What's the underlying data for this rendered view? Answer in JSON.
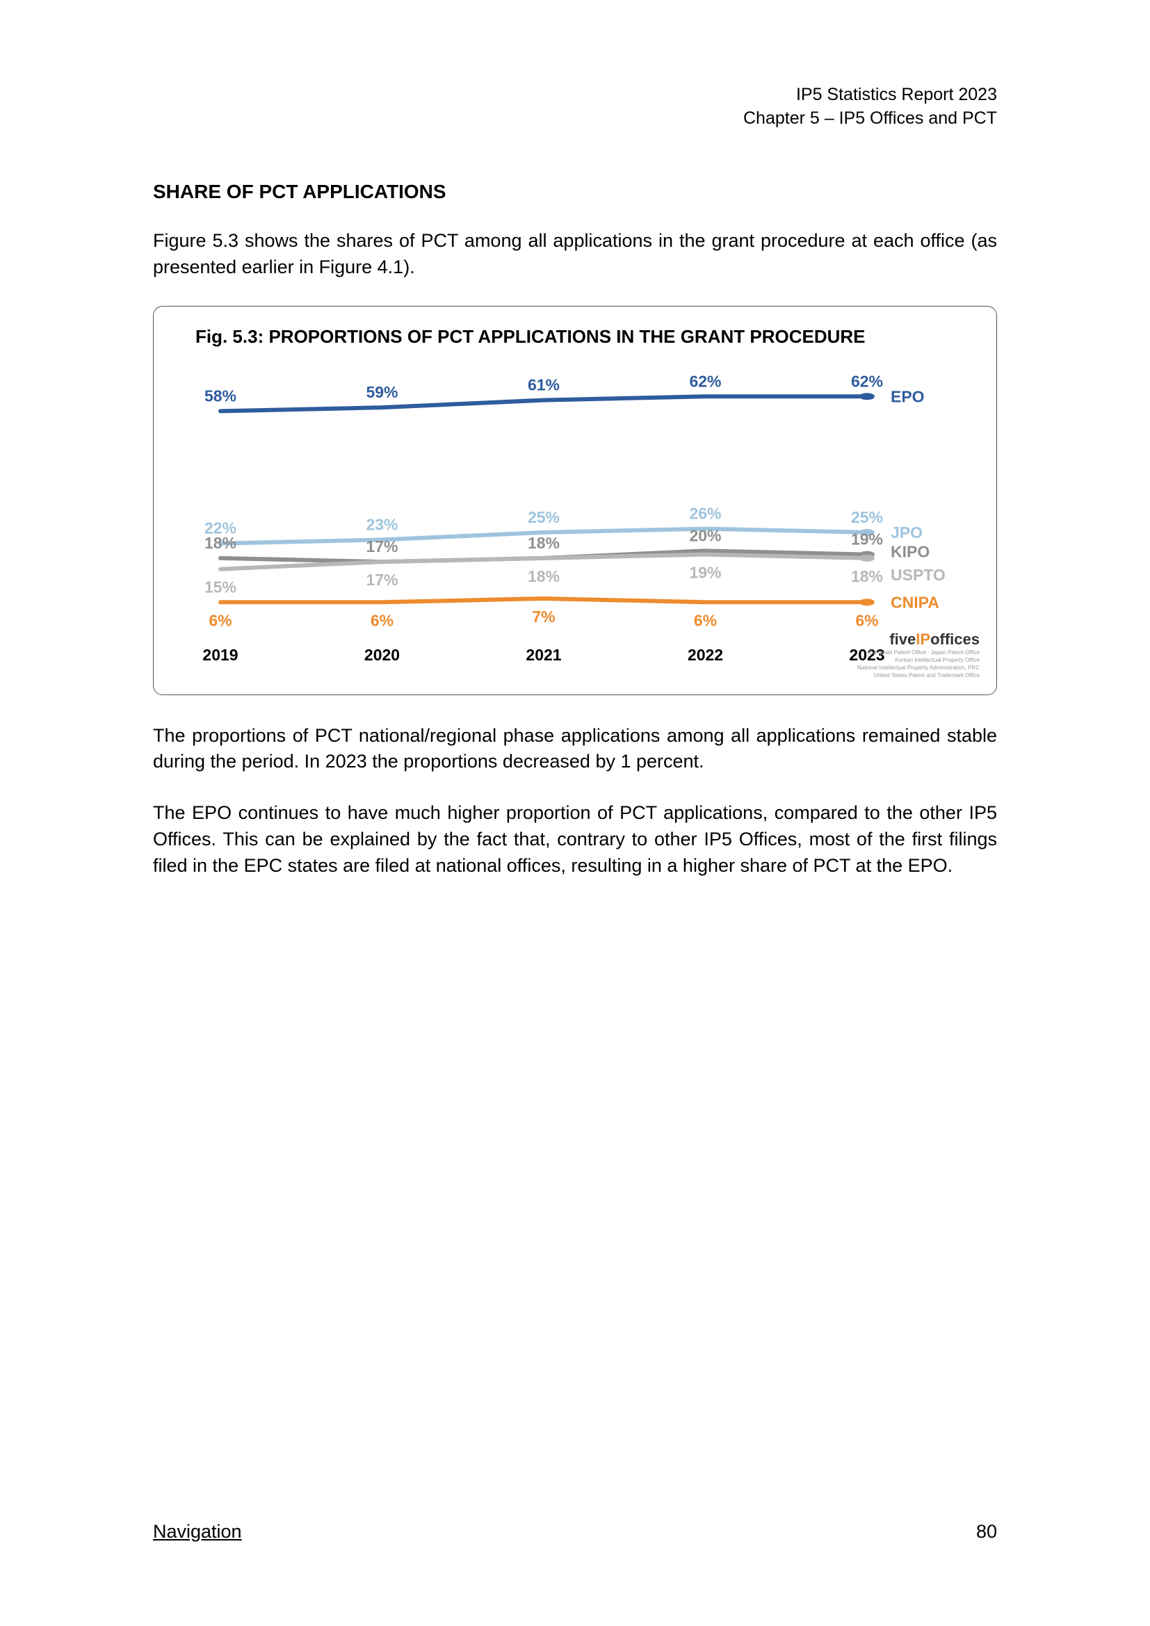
{
  "header": {
    "line1": "IP5 Statistics Report 2023",
    "line2": "Chapter 5 – IP5 Offices and PCT"
  },
  "section_title": "SHARE OF PCT APPLICATIONS",
  "intro_text": "Figure 5.3 shows the shares of PCT among all applications in the grant procedure at each office (as presented earlier in Figure 4.1).",
  "chart": {
    "title": "Fig. 5.3: PROPORTIONS OF PCT APPLICATIONS IN THE GRANT PROCEDURE",
    "x_categories": [
      "2019",
      "2020",
      "2021",
      "2022",
      "2023"
    ],
    "ylim": [
      0,
      70
    ],
    "line_width": 6,
    "marker_radius": 5,
    "background_color": "#ffffff",
    "series": [
      {
        "name": "EPO",
        "color": "#2e5c9e",
        "values": [
          58,
          59,
          61,
          62,
          62
        ],
        "labels": [
          "58%",
          "59%",
          "61%",
          "62%",
          "62%"
        ],
        "label_pos": "above"
      },
      {
        "name": "JPO",
        "color": "#9fc4de",
        "values": [
          22,
          23,
          25,
          26,
          25
        ],
        "labels": [
          "22%",
          "23%",
          "25%",
          "26%",
          "25%"
        ],
        "label_pos": "above"
      },
      {
        "name": "KIPO",
        "color": "#8f8f8f",
        "values": [
          18,
          17,
          18,
          20,
          19
        ],
        "labels": [
          "18%",
          "17%",
          "18%",
          "20%",
          "19%"
        ],
        "label_pos": "above"
      },
      {
        "name": "USPTO",
        "color": "#b7b7b7",
        "values": [
          15,
          17,
          18,
          19,
          18
        ],
        "labels": [
          "15%",
          "17%",
          "18%",
          "19%",
          "18%"
        ],
        "label_pos": "below"
      },
      {
        "name": "CNIPA",
        "color": "#ed8b2e",
        "values": [
          6,
          6,
          7,
          6,
          6
        ],
        "labels": [
          "6%",
          "6%",
          "7%",
          "6%",
          "6%"
        ],
        "label_pos": "below"
      }
    ],
    "logo": {
      "five": "five",
      "ip": "IP",
      "offices": "offices",
      "sub1": "European Patent Office · Japan Patent Office",
      "sub2": "Korean Intellectual Property Office",
      "sub3": "National Intellectual Property Administration, PRC",
      "sub4": "United States Patent and Trademark Office"
    }
  },
  "para2": "The proportions of PCT national/regional phase applications among all applications remained stable during the period. In 2023 the proportions decreased by 1 percent.",
  "para3": "The EPO continues to have much higher proportion of PCT applications, compared to the other IP5 Offices. This can be explained by the fact that, contrary to other IP5 Offices, most of the first filings filed in the EPC states are filed at national offices, resulting in a higher share of PCT at the EPO.",
  "footer": {
    "nav": "Navigation",
    "page": "80"
  }
}
